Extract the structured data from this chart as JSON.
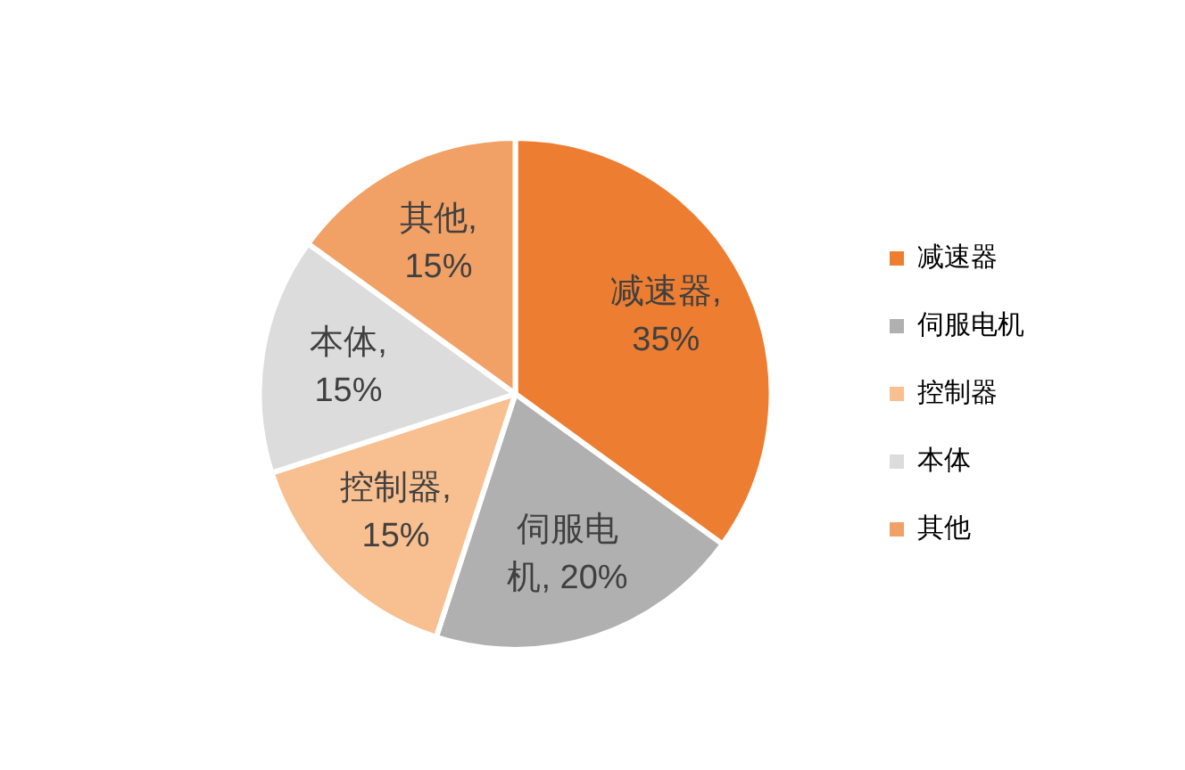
{
  "chart_data": {
    "type": "pie",
    "categories": [
      "减速器",
      "伺服电机",
      "控制器",
      "本体",
      "其他"
    ],
    "values": [
      35,
      20,
      15,
      15,
      15
    ],
    "colors": [
      "#ed7d31",
      "#b0b0b0",
      "#f8bf90",
      "#dcdcdc",
      "#f1a066"
    ],
    "value_labels": [
      "减速器, 35%",
      "伺服电机, 20%",
      "控制器, 15%",
      "本体, 15%",
      "其他, 15%"
    ],
    "legend": "right"
  }
}
